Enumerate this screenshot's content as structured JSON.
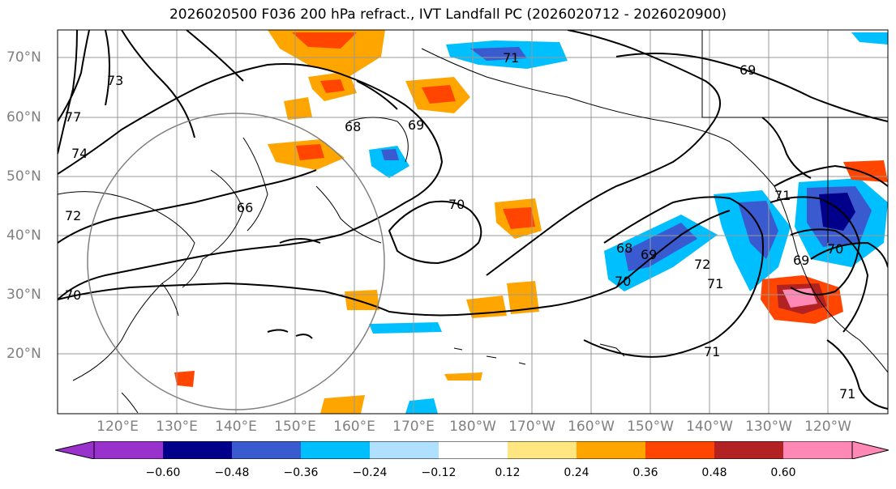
{
  "title": "2026020500 F036 200 hPa refract., IVT Landfall PC (2026020712 - 2026020900)",
  "map": {
    "lat_labels": [
      "70°N",
      "60°N",
      "50°N",
      "40°N",
      "30°N",
      "20°N"
    ],
    "lon_labels": [
      "120°E",
      "130°E",
      "140°E",
      "150°E",
      "160°E",
      "170°E",
      "180°W",
      "170°W",
      "160°W",
      "150°W",
      "140°W",
      "130°W",
      "120°W"
    ],
    "contour_labels": [
      "71",
      "69",
      "73",
      "77",
      "74",
      "72",
      "68",
      "69",
      "66",
      "70",
      "68",
      "69",
      "70",
      "72",
      "71",
      "71",
      "69",
      "70",
      "71",
      "71",
      "70"
    ]
  },
  "colorbar": {
    "ticks": [
      "−0.60",
      "−0.48",
      "−0.36",
      "−0.24",
      "−0.12",
      "0.12",
      "0.24",
      "0.36",
      "0.48",
      "0.60"
    ],
    "colors": [
      "#9932cc",
      "#00008b",
      "#3a5bd0",
      "#00bfff",
      "#b0e0ff",
      "#ffffff",
      "#ffe680",
      "#ffa500",
      "#ff4500",
      "#b22222",
      "#ff88b4",
      "#ff88b4"
    ]
  }
}
